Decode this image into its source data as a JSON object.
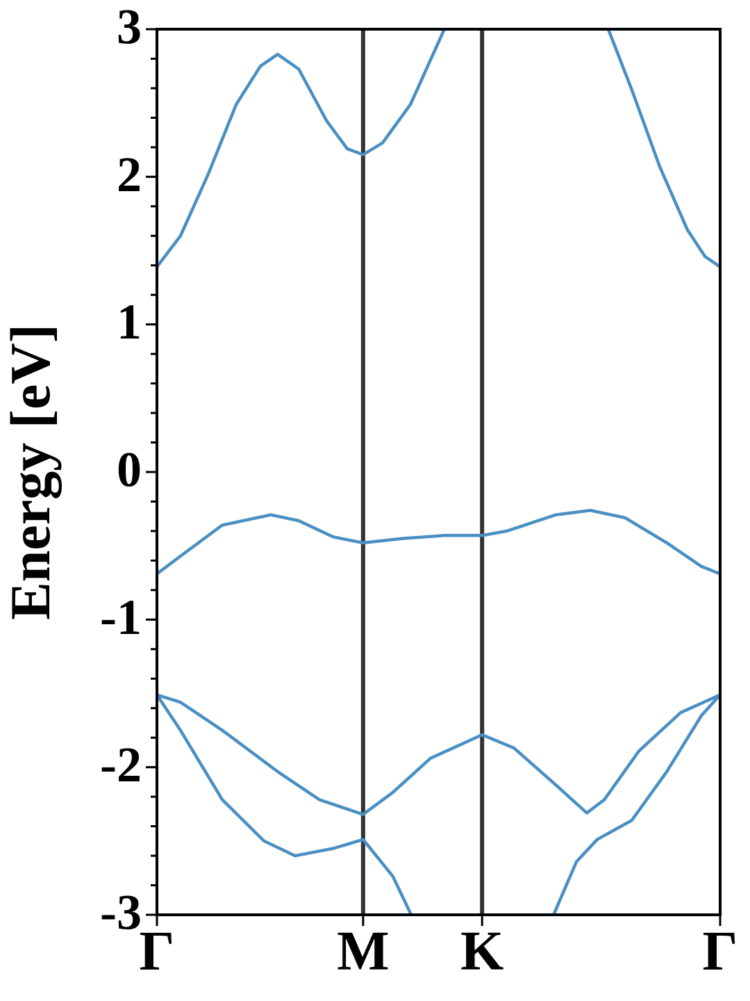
{
  "chart_data": {
    "type": "line",
    "ylabel": "Energy [eV]",
    "xlim": [
      0,
      1.5774
    ],
    "xticks": [
      {
        "value": 0,
        "label": "Γ"
      },
      {
        "value": 0.5774,
        "label": "M"
      },
      {
        "value": 0.9107,
        "label": "K"
      },
      {
        "value": 1.5774,
        "label": "Γ"
      }
    ],
    "xtick_lines": true,
    "ylim": [
      -3,
      3
    ],
    "yticks": [
      -3,
      -2,
      -1,
      0,
      1,
      2,
      3
    ],
    "yminor_step": 0.2,
    "series": [
      {
        "color": "#4a8fc2",
        "x": [
          0,
          0.066,
          0.144,
          0.222,
          0.29,
          0.338,
          0.397,
          0.475,
          0.533,
          0.5774,
          0.632,
          0.71,
          0.805,
          1.0,
          1.264,
          1.33,
          1.408,
          1.486,
          1.535,
          1.5774
        ],
        "values": [
          1.39,
          1.6,
          2.02,
          2.49,
          2.75,
          2.83,
          2.73,
          2.38,
          2.19,
          2.15,
          2.23,
          2.49,
          3.0,
          null,
          3.0,
          2.59,
          2.07,
          1.64,
          1.46,
          1.39
        ]
      },
      {
        "color": "#4a8fc2",
        "x": [
          0,
          0.066,
          0.183,
          0.319,
          0.397,
          0.494,
          0.5774,
          0.689,
          0.805,
          0.9107,
          0.98,
          1.117,
          1.214,
          1.311,
          1.428,
          1.525,
          1.5774
        ],
        "values": [
          -0.69,
          -0.57,
          -0.36,
          -0.29,
          -0.33,
          -0.44,
          -0.48,
          -0.45,
          -0.43,
          -0.43,
          -0.4,
          -0.29,
          -0.26,
          -0.31,
          -0.48,
          -0.64,
          -0.69
        ]
      },
      {
        "color": "#4a8fc2",
        "x": [
          0,
          0.066,
          0.183,
          0.338,
          0.455,
          0.5774,
          0.661,
          0.766,
          0.9107,
          1.0,
          1.117,
          1.204,
          1.253,
          1.35,
          1.467,
          1.5774
        ],
        "values": [
          -1.51,
          -1.56,
          -1.75,
          -2.03,
          -2.22,
          -2.32,
          -2.17,
          -1.94,
          -1.78,
          -1.87,
          -2.12,
          -2.31,
          -2.22,
          -1.89,
          -1.63,
          -1.51
        ]
      },
      {
        "color": "#4a8fc2",
        "x": [
          0,
          0.066,
          0.183,
          0.3,
          0.387,
          0.494,
          0.5774,
          0.661,
          0.712,
          0.9,
          1.111,
          1.175,
          1.233,
          1.33,
          1.428,
          1.525,
          1.5774
        ],
        "values": [
          -1.51,
          -1.75,
          -2.22,
          -2.5,
          -2.6,
          -2.55,
          -2.49,
          -2.74,
          -3.0,
          null,
          -3.0,
          -2.64,
          -2.49,
          -2.36,
          -2.03,
          -1.65,
          -1.51
        ]
      }
    ]
  }
}
